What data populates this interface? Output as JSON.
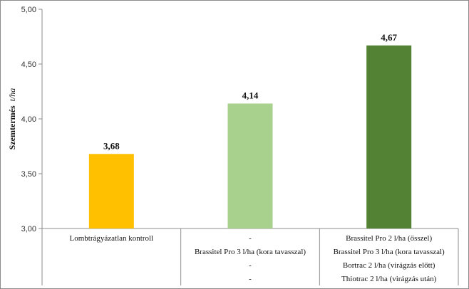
{
  "chart_data": {
    "type": "bar",
    "title": "",
    "xlabel": "",
    "ylabel": "Szemtermés",
    "ylabel_unit": "t/ha",
    "ylim": [
      3.0,
      5.0
    ],
    "yticks": [
      "3,00",
      "3,50",
      "4,00",
      "4,50",
      "5,00"
    ],
    "ytick_values": [
      3.0,
      3.5,
      4.0,
      4.5,
      5.0
    ],
    "grid": false,
    "categories": [
      [
        "Lombtrágyázatlan kontroll"
      ],
      [
        "-",
        "Brassitel  Pro 3 l/ha (kora tavasszal)",
        "-",
        "-"
      ],
      [
        "Brassitel Pro 2 l/ha  (ősszel)",
        "Brassitel  Pro 3 l/ha (kora tavasszal)",
        "Bortrac 2 l/ha (virágzás előtt)",
        "Thiotrac 2 l/ha (virágzás után)"
      ]
    ],
    "values": [
      3.68,
      4.14,
      4.67
    ],
    "value_labels": [
      "3,68",
      "4,14",
      "4,67"
    ],
    "colors": [
      "#ffc000",
      "#a9d18e",
      "#548235"
    ]
  }
}
